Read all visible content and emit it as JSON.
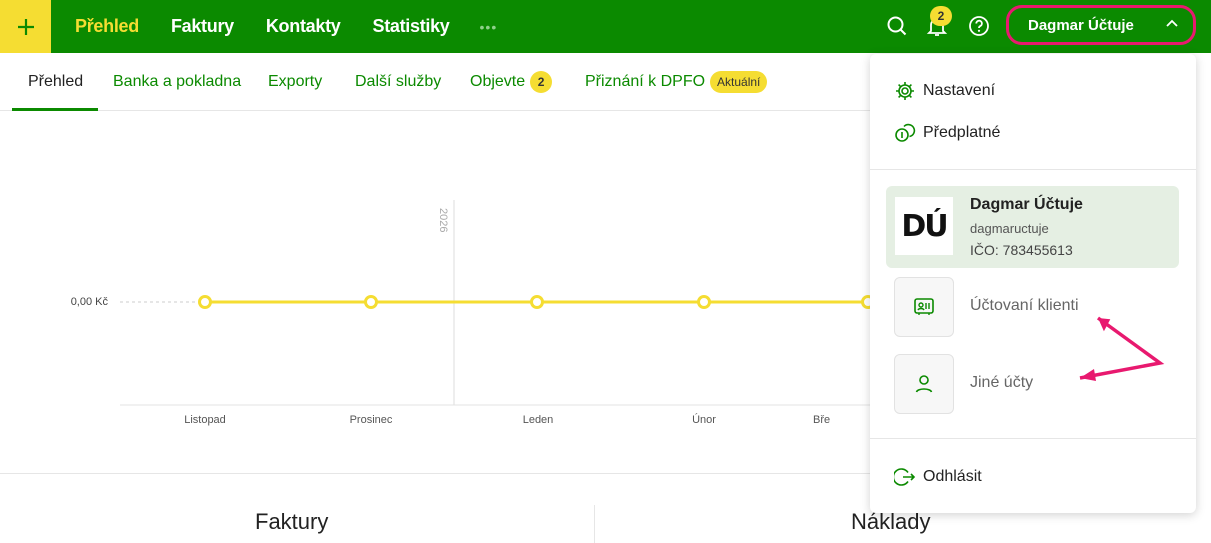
{
  "topbar": {
    "nav": [
      "Přehled",
      "Faktury",
      "Kontakty",
      "Statistiky"
    ],
    "more_label": "•••",
    "notifications_count": "2",
    "user_name": "Dagmar Účtuje",
    "accent": "#0b8a00",
    "highlight": "#f5dd32",
    "annotation_color": "#e8196f"
  },
  "subnav": {
    "tabs": [
      "Přehled",
      "Banka a pokladna",
      "Exporty",
      "Další služby",
      "Objevte",
      "Přiznání k DPFO"
    ],
    "objevte_badge": "2",
    "dpfo_badge": "Aktuální"
  },
  "chart": {
    "y_label": "0,00 Kč",
    "year_label": "2026",
    "months": [
      "Listopad",
      "Prosinec",
      "Leden",
      "Únor",
      "Bře"
    ]
  },
  "chart_data": {
    "type": "line",
    "categories": [
      "Listopad",
      "Prosinec",
      "Leden",
      "Únor",
      "Březen"
    ],
    "series": [
      {
        "values": [
          0,
          0,
          0,
          0,
          0
        ]
      }
    ]
  },
  "sections": {
    "left_title": "Faktury",
    "right_title": "Náklady"
  },
  "dropdown": {
    "settings": "Nastavení",
    "subscription": "Předplatné",
    "account": {
      "name": "Dagmar Účtuje",
      "username": "dagmaructuje",
      "ico": "IČO: 783455613"
    },
    "clients": "Účtovaní klienti",
    "other_accounts": "Jiné účty",
    "logout": "Odhlásit"
  }
}
